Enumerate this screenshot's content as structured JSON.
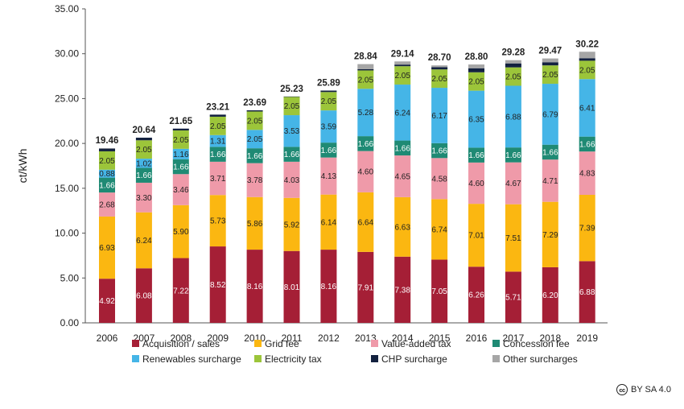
{
  "chart_data": {
    "type": "bar",
    "stacked": true,
    "ylabel": "ct/kWh",
    "ylim": [
      0,
      35
    ],
    "yticks": [
      "0.00",
      "5.00",
      "10.00",
      "15.00",
      "20.00",
      "25.00",
      "30.00",
      "35.00"
    ],
    "categories": [
      "2006",
      "2007",
      "2008",
      "2009",
      "2010",
      "2011",
      "2012",
      "2013",
      "2014",
      "2015",
      "2016",
      "2017",
      "2018",
      "2019"
    ],
    "totals": [
      "19.46",
      "20.64",
      "21.65",
      "23.21",
      "23.69",
      "25.23",
      "25.89",
      "28.84",
      "29.14",
      "28.70",
      "28.80",
      "29.28",
      "29.47",
      "30.22"
    ],
    "series": [
      {
        "name": "Acquisition / sales",
        "color": "#a51f36",
        "label_color": "#ffffff",
        "values": [
          4.92,
          6.08,
          7.22,
          8.52,
          8.16,
          8.01,
          8.16,
          7.91,
          7.38,
          7.05,
          6.26,
          5.71,
          6.2,
          6.88
        ]
      },
      {
        "name": "Grid fee",
        "color": "#fbb711",
        "label_color": "#222222",
        "values": [
          6.93,
          6.24,
          5.9,
          5.73,
          5.86,
          5.92,
          6.14,
          6.64,
          6.63,
          6.74,
          7.01,
          7.51,
          7.29,
          7.39
        ]
      },
      {
        "name": "Value-added tax",
        "color": "#ef9aa9",
        "label_color": "#222222",
        "values": [
          2.68,
          3.3,
          3.46,
          3.71,
          3.78,
          4.03,
          4.13,
          4.6,
          4.65,
          4.58,
          4.6,
          4.67,
          4.71,
          4.83
        ]
      },
      {
        "name": "Concession fee",
        "color": "#1f8a74",
        "label_color": "#ffffff",
        "values": [
          1.66,
          1.66,
          1.66,
          1.66,
          1.66,
          1.66,
          1.66,
          1.66,
          1.66,
          1.66,
          1.66,
          1.66,
          1.66,
          1.66
        ]
      },
      {
        "name": "Renewables surcharge",
        "color": "#45b5e7",
        "label_color": "#222222",
        "values": [
          0.88,
          1.02,
          1.16,
          1.31,
          2.05,
          3.53,
          3.59,
          5.28,
          6.24,
          6.17,
          6.35,
          6.88,
          6.79,
          6.41
        ]
      },
      {
        "name": "Electricity tax",
        "color": "#9cc53a",
        "label_color": "#222222",
        "values": [
          2.05,
          2.05,
          2.05,
          2.05,
          2.05,
          2.05,
          2.05,
          2.05,
          2.05,
          2.05,
          2.05,
          2.05,
          2.05,
          2.05
        ]
      },
      {
        "name": "CHP surcharge",
        "color": "#13213f",
        "label_color": "#ffffff",
        "values": [
          0.31,
          0.29,
          0.2,
          0.23,
          0.13,
          0.03,
          0.16,
          0.13,
          0.18,
          0.25,
          0.45,
          0.44,
          0.35,
          0.28
        ]
      },
      {
        "name": "Other surcharges",
        "color": "#a6a6a6",
        "label_color": "#222222",
        "values": [
          0.03,
          0.0,
          0.0,
          0.0,
          0.0,
          0.0,
          0.0,
          0.57,
          0.35,
          0.2,
          0.42,
          0.36,
          0.42,
          0.72
        ]
      }
    ],
    "legend_position": "bottom",
    "grid": false
  },
  "license": {
    "icon": "cc",
    "text": "BY SA 4.0"
  }
}
